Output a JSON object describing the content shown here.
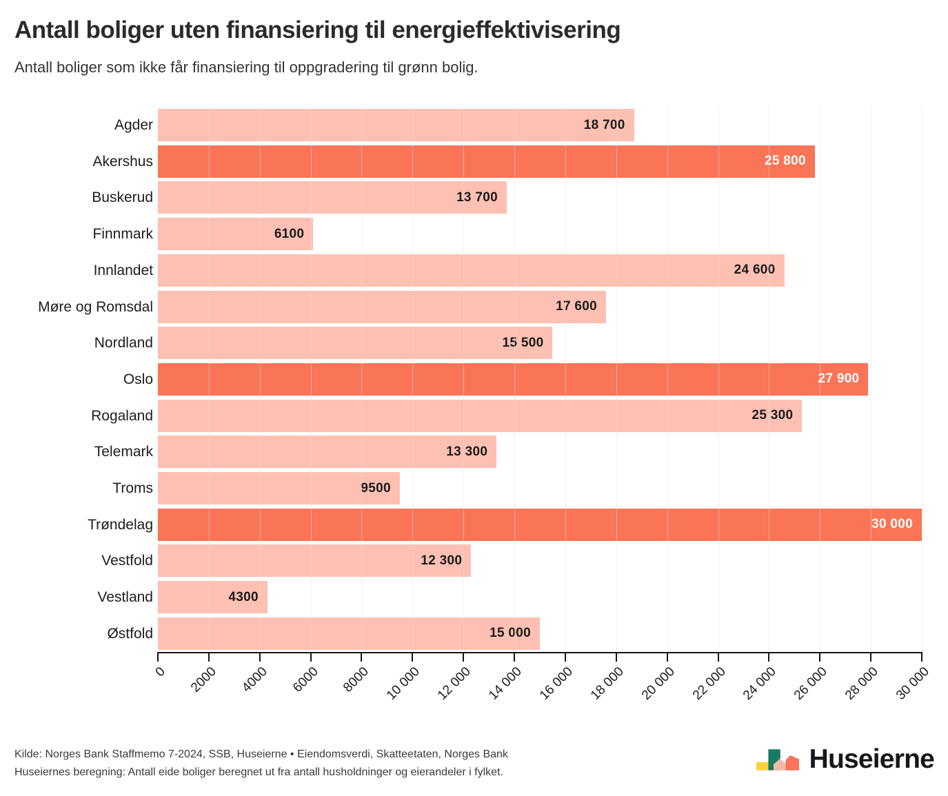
{
  "header": {
    "title": "Antall boliger uten finansiering til energieffektivisering",
    "subtitle": "Antall boliger som ikke får finansiering til oppgradering til grønn bolig."
  },
  "chart_data": {
    "type": "bar",
    "orientation": "horizontal",
    "title": "Antall boliger uten finansiering til energieffektivisering",
    "xlabel": "",
    "ylabel": "",
    "xlim": [
      0,
      30000
    ],
    "grid": true,
    "rows": [
      {
        "label": "Agder",
        "value": 18700,
        "value_label": "18 700",
        "highlight": false
      },
      {
        "label": "Akershus",
        "value": 25800,
        "value_label": "25 800",
        "highlight": true
      },
      {
        "label": "Buskerud",
        "value": 13700,
        "value_label": "13 700",
        "highlight": false
      },
      {
        "label": "Finnmark",
        "value": 6100,
        "value_label": "6100",
        "highlight": false
      },
      {
        "label": "Innlandet",
        "value": 24600,
        "value_label": "24 600",
        "highlight": false
      },
      {
        "label": "Møre og Romsdal",
        "value": 17600,
        "value_label": "17 600",
        "highlight": false
      },
      {
        "label": "Nordland",
        "value": 15500,
        "value_label": "15 500",
        "highlight": false
      },
      {
        "label": "Oslo",
        "value": 27900,
        "value_label": "27 900",
        "highlight": true
      },
      {
        "label": "Rogaland",
        "value": 25300,
        "value_label": "25 300",
        "highlight": false
      },
      {
        "label": "Telemark",
        "value": 13300,
        "value_label": "13 300",
        "highlight": false
      },
      {
        "label": "Troms",
        "value": 9500,
        "value_label": "9500",
        "highlight": false
      },
      {
        "label": "Trøndelag",
        "value": 30000,
        "value_label": "30 000",
        "highlight": true
      },
      {
        "label": "Vestfold",
        "value": 12300,
        "value_label": "12 300",
        "highlight": false
      },
      {
        "label": "Vestland",
        "value": 4300,
        "value_label": "4300",
        "highlight": false
      },
      {
        "label": "Østfold",
        "value": 15000,
        "value_label": "15 000",
        "highlight": false
      }
    ],
    "x_ticks": [
      {
        "value": 0,
        "label": "0"
      },
      {
        "value": 2000,
        "label": "2000"
      },
      {
        "value": 4000,
        "label": "4000"
      },
      {
        "value": 6000,
        "label": "6000"
      },
      {
        "value": 8000,
        "label": "8000"
      },
      {
        "value": 10000,
        "label": "10 000"
      },
      {
        "value": 12000,
        "label": "12 000"
      },
      {
        "value": 14000,
        "label": "14 000"
      },
      {
        "value": 16000,
        "label": "16 000"
      },
      {
        "value": 18000,
        "label": "18 000"
      },
      {
        "value": 20000,
        "label": "20 000"
      },
      {
        "value": 22000,
        "label": "22 000"
      },
      {
        "value": 24000,
        "label": "24 000"
      },
      {
        "value": 26000,
        "label": "26 000"
      },
      {
        "value": 28000,
        "label": "28 000"
      },
      {
        "value": 30000,
        "label": "30 000"
      }
    ],
    "colors": {
      "bar": "rgba(250, 116, 86, 0.45)",
      "bar_highlight": "#fa7456",
      "value_label_on_bar": "#1a1a1a",
      "value_label_on_highlight": "#ffffff",
      "gridline_under": "#e7e7e7",
      "gridline_over": "rgba(255, 255, 255, 0.4)",
      "axis": "#141414"
    }
  },
  "footer": {
    "source_line": "Kilde: Norges Bank Staffmemo 7-2024, SSB, Huseierne • Eiendomsverdi, Skatteetaten, Norges Bank",
    "note_line": "Huseiernes beregning: Antall eide boliger beregnet ut fra antall husholdninger og eierandeler i fylket."
  },
  "logo": {
    "text": "Huseierne",
    "colors": {
      "yellow": "#fbd23e",
      "green": "#177a62",
      "pink": "#f5bfae",
      "pink_dots": "#db9b85",
      "coral": "#f9745a"
    }
  }
}
